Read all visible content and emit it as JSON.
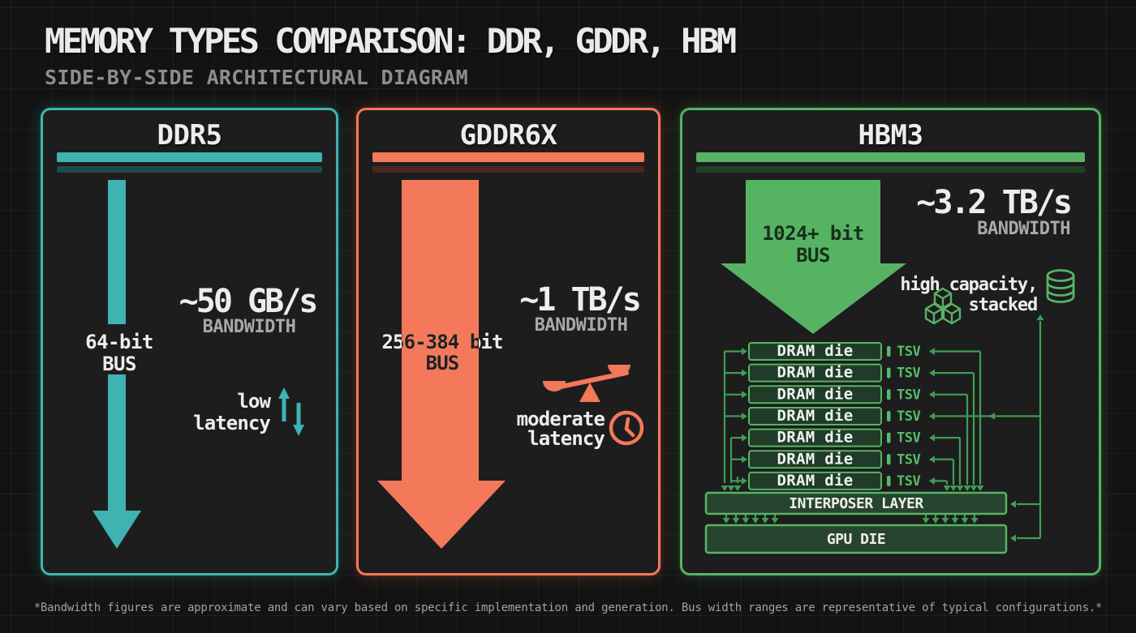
{
  "header": {
    "title": "MEMORY TYPES COMPARISON: DDR, GDDR, HBM",
    "subtitle": "SIDE-BY-SIDE ARCHITECTURAL DIAGRAM"
  },
  "colors": {
    "page_bg": "#131313",
    "panel_bg": "#1d1d1d",
    "text_primary": "#ededed",
    "text_secondary": "#a9a9a9",
    "wire_green": "#3f9e52",
    "tsv_green": "#54bd68"
  },
  "panels": {
    "ddr5": {
      "title": "DDR5",
      "accent": "#3fb3b1",
      "accent_dim": "#1d4b49",
      "bus_line1": "64-bit",
      "bus_line2": "BUS",
      "bandwidth_value": "~50 GB/s",
      "bandwidth_label": "BANDWIDTH",
      "latency_line1": "low",
      "latency_line2": "latency",
      "latency_icon": "up-down-arrows"
    },
    "gddr6x": {
      "title": "GDDR6X",
      "accent": "#f4785a",
      "accent_dim": "#4d261f",
      "bus_line1": "256-384 bit",
      "bus_line2": "BUS",
      "bandwidth_value": "~1 TB/s",
      "bandwidth_label": "BANDWIDTH",
      "latency_line1": "moderate",
      "latency_line2": "latency",
      "latency_icons": [
        "balance-scale",
        "clock"
      ]
    },
    "hbm3": {
      "title": "HBM3",
      "accent": "#57b364",
      "accent_dim": "#1f4028",
      "bus_line1": "1024+ bit",
      "bus_line2": "BUS",
      "bandwidth_value": "~3.2 TB/s",
      "bandwidth_label": "BANDWIDTH",
      "capacity_line1": "high capacity,",
      "capacity_line2": "stacked",
      "capacity_icons": [
        "stacked-cubes",
        "database-stack"
      ],
      "die_label": "DRAM die",
      "die_count": 7,
      "tsv_label": "TSV",
      "interposer_label": "INTERPOSER LAYER",
      "gpu_label": "GPU DIE"
    }
  },
  "footer": {
    "note": "*Bandwidth figures are approximate and can vary based on specific implementation and generation. Bus width ranges are representative of typical configurations.*"
  }
}
